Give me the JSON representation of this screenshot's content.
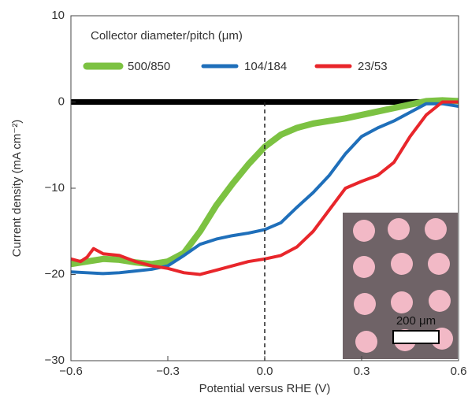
{
  "chart_data": {
    "type": "line",
    "xlabel": "Potential versus RHE (V)",
    "ylabel": "Current density (mA cm⁻²)",
    "legend_title": "Collector diameter/pitch (μm)",
    "xlim": [
      -0.6,
      0.6
    ],
    "xticks": [
      {
        "value": -0.6,
        "label": "−0.6"
      },
      {
        "value": -0.3,
        "label": "−0.3"
      },
      {
        "value": 0,
        "label": "0.0"
      },
      0.3,
      0.6
    ],
    "ylim": [
      -30,
      10
    ],
    "yticks": [
      10,
      0,
      {
        "value": -10,
        "label": "−10"
      },
      {
        "value": -20,
        "label": "−20"
      },
      {
        "value": -30,
        "label": "−30"
      }
    ],
    "vline_x": 0,
    "zero_line": {
      "color": "#000000",
      "x": [
        -0.6,
        0.48
      ],
      "values": [
        0,
        0
      ]
    },
    "series": [
      {
        "name": "500/850",
        "color": "#7cc242",
        "x": [
          -0.6,
          -0.55,
          -0.5,
          -0.45,
          -0.4,
          -0.35,
          -0.3,
          -0.25,
          -0.2,
          -0.15,
          -0.1,
          -0.05,
          0,
          0.05,
          0.1,
          0.15,
          0.2,
          0.25,
          0.3,
          0.35,
          0.4,
          0.45,
          0.5,
          0.55,
          0.6
        ],
        "values": [
          -18.8,
          -18.5,
          -18.2,
          -18.3,
          -18.6,
          -18.8,
          -18.5,
          -17.5,
          -15,
          -12,
          -9.5,
          -7.2,
          -5.2,
          -3.8,
          -3,
          -2.5,
          -2.2,
          -1.9,
          -1.5,
          -1.1,
          -0.7,
          -0.3,
          0.1,
          0.2,
          0.1
        ]
      },
      {
        "name": "104/184",
        "color": "#1f6fba",
        "x": [
          -0.6,
          -0.55,
          -0.5,
          -0.45,
          -0.4,
          -0.35,
          -0.3,
          -0.25,
          -0.2,
          -0.15,
          -0.1,
          -0.05,
          0,
          0.05,
          0.1,
          0.15,
          0.2,
          0.25,
          0.3,
          0.35,
          0.4,
          0.45,
          0.5,
          0.55,
          0.6
        ],
        "values": [
          -19.7,
          -19.8,
          -19.9,
          -19.8,
          -19.6,
          -19.4,
          -19,
          -17.8,
          -16.5,
          -15.9,
          -15.5,
          -15.2,
          -14.8,
          -14,
          -12.2,
          -10.5,
          -8.5,
          -6,
          -4,
          -3,
          -2.2,
          -1.2,
          -0.2,
          -0.2,
          -0.5
        ]
      },
      {
        "name": "23/53",
        "color": "#e8262b",
        "x": [
          -0.6,
          -0.57,
          -0.55,
          -0.53,
          -0.5,
          -0.45,
          -0.4,
          -0.35,
          -0.3,
          -0.25,
          -0.2,
          -0.15,
          -0.1,
          -0.05,
          0,
          0.05,
          0.1,
          0.15,
          0.2,
          0.25,
          0.3,
          0.35,
          0.4,
          0.45,
          0.5,
          0.55,
          0.6
        ],
        "values": [
          -18.2,
          -18.5,
          -18,
          -17,
          -17.6,
          -17.8,
          -18.5,
          -19,
          -19.3,
          -19.8,
          -20,
          -19.5,
          -19,
          -18.5,
          -18.2,
          -17.8,
          -16.8,
          -15,
          -12.5,
          -10,
          -9.2,
          -8.5,
          -7,
          -4,
          -1.5,
          0,
          0
        ]
      }
    ],
    "inset_scale_label": "200 μm"
  }
}
